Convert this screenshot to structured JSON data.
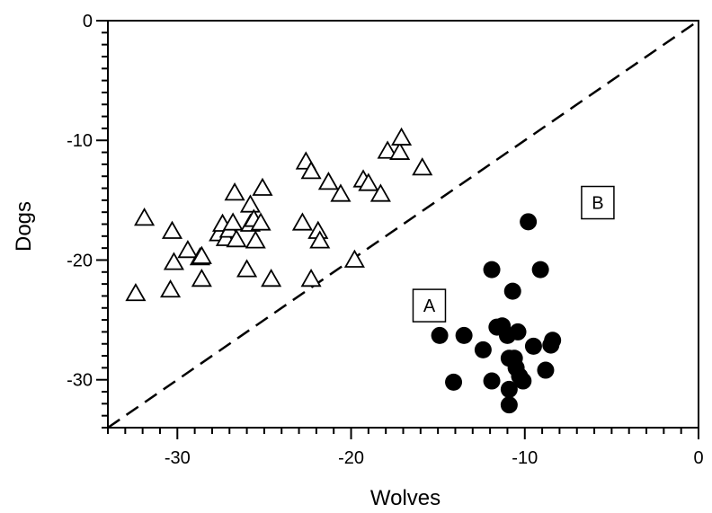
{
  "chart_data": {
    "type": "scatter",
    "xlabel": "Wolves",
    "ylabel": "Dogs",
    "xlim": [
      -34,
      0
    ],
    "ylim": [
      -34,
      0
    ],
    "x_ticks": [
      {
        "value": -30,
        "label": "-30"
      },
      {
        "value": -20,
        "label": "-20"
      },
      {
        "value": -10,
        "label": "-10"
      },
      {
        "value": 0,
        "label": "0"
      }
    ],
    "y_ticks": [
      {
        "value": 0,
        "label": "0"
      },
      {
        "value": -10,
        "label": "-10"
      },
      {
        "value": -20,
        "label": "-20"
      },
      {
        "value": -30,
        "label": "-30"
      }
    ],
    "grid": false,
    "reference_line": {
      "style": "dashed",
      "from": [
        -34,
        -34
      ],
      "to": [
        0,
        0
      ]
    },
    "annotations": [
      {
        "text": "A",
        "x": -15.5,
        "y": -23.8
      },
      {
        "text": "B",
        "x": -5.8,
        "y": -15.2
      }
    ],
    "series": [
      {
        "marker": "open-triangle",
        "points": [
          [
            -32.4,
            -22.8
          ],
          [
            -31.9,
            -16.5
          ],
          [
            -30.4,
            -22.5
          ],
          [
            -30.3,
            -17.6
          ],
          [
            -30.2,
            -20.2
          ],
          [
            -29.4,
            -19.2
          ],
          [
            -28.7,
            -19.8
          ],
          [
            -28.6,
            -19.7
          ],
          [
            -28.6,
            -21.6
          ],
          [
            -27.6,
            -17.8
          ],
          [
            -27.4,
            -17.0
          ],
          [
            -27.2,
            -18.2
          ],
          [
            -27.0,
            -17.5
          ],
          [
            -26.8,
            -16.9
          ],
          [
            -26.7,
            -14.4
          ],
          [
            -26.6,
            -18.3
          ],
          [
            -26.0,
            -20.8
          ],
          [
            -25.8,
            -17.0
          ],
          [
            -25.8,
            -15.4
          ],
          [
            -25.6,
            -16.6
          ],
          [
            -25.5,
            -18.4
          ],
          [
            -25.2,
            -16.9
          ],
          [
            -25.1,
            -14.0
          ],
          [
            -24.6,
            -21.6
          ],
          [
            -22.8,
            -16.9
          ],
          [
            -22.6,
            -11.8
          ],
          [
            -22.3,
            -12.6
          ],
          [
            -22.3,
            -21.6
          ],
          [
            -21.9,
            -17.6
          ],
          [
            -21.8,
            -18.4
          ],
          [
            -21.3,
            -13.5
          ],
          [
            -20.6,
            -14.5
          ],
          [
            -19.8,
            -20.0
          ],
          [
            -19.3,
            -13.3
          ],
          [
            -19.0,
            -13.6
          ],
          [
            -18.3,
            -14.5
          ],
          [
            -17.9,
            -10.9
          ],
          [
            -17.2,
            -11.0
          ],
          [
            -17.1,
            -9.8
          ],
          [
            -15.9,
            -12.3
          ]
        ]
      },
      {
        "marker": "filled-circle",
        "points": [
          [
            -14.9,
            -26.3
          ],
          [
            -14.1,
            -30.2
          ],
          [
            -13.5,
            -26.3
          ],
          [
            -12.4,
            -27.5
          ],
          [
            -11.9,
            -20.8
          ],
          [
            -11.9,
            -30.1
          ],
          [
            -11.6,
            -25.6
          ],
          [
            -11.3,
            -25.5
          ],
          [
            -11.0,
            -26.3
          ],
          [
            -10.9,
            -28.2
          ],
          [
            -10.9,
            -30.8
          ],
          [
            -10.9,
            -32.1
          ],
          [
            -10.7,
            -22.6
          ],
          [
            -10.6,
            -28.2
          ],
          [
            -10.5,
            -29.0
          ],
          [
            -10.4,
            -26.0
          ],
          [
            -10.3,
            -29.7
          ],
          [
            -10.1,
            -30.1
          ],
          [
            -9.8,
            -16.8
          ],
          [
            -9.5,
            -27.2
          ],
          [
            -9.1,
            -20.8
          ],
          [
            -8.8,
            -29.2
          ],
          [
            -8.5,
            -27.1
          ],
          [
            -8.4,
            -26.7
          ]
        ]
      }
    ]
  }
}
